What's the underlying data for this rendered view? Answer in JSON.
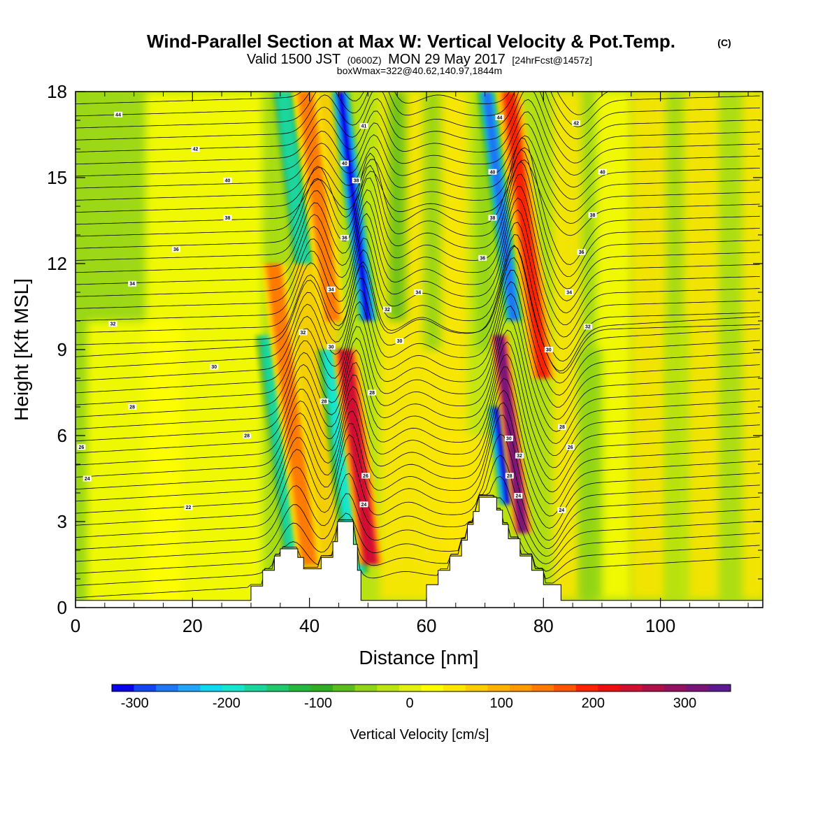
{
  "chart_data": {
    "type": "heatmap",
    "title": "Wind-Parallel Section at Max W: Vertical Velocity & Pot.Temp.",
    "title_mark": "(C)",
    "subtitle_parts": [
      "Valid 1500 JST",
      "(0600Z)",
      "MON 29 May 2017",
      "[24hrFcst@1457z]"
    ],
    "subtitle2": "boxWmax=322@40.62,140.97,1844m",
    "xlabel": "Distance [nm]",
    "ylabel": "Height [Kft MSL]",
    "xlim": [
      0,
      117.5
    ],
    "ylim": [
      0,
      18
    ],
    "x_ticks": [
      "0",
      "20",
      "40",
      "60",
      "80",
      "100"
    ],
    "y_ticks": [
      "0",
      "3",
      "6",
      "9",
      "12",
      "15",
      "18"
    ],
    "colorbar": {
      "label": "Vertical Velocity [cm/s]",
      "range": [
        -325,
        350
      ],
      "tick_labels": [
        "-300",
        "-200",
        "-100",
        "0",
        "100",
        "200",
        "300"
      ],
      "colors": [
        "#0a05e8",
        "#1446f0",
        "#1f77f5",
        "#22a6f7",
        "#10d8f3",
        "#16e6ce",
        "#1ad69d",
        "#1fc96c",
        "#24b93d",
        "#2fae21",
        "#5cbe1d",
        "#8fd417",
        "#bce411",
        "#e1f00c",
        "#fefe02",
        "#ffe600",
        "#ffcc00",
        "#ffb300",
        "#ff9900",
        "#ff7a00",
        "#ff5400",
        "#fb2400",
        "#ec0f10",
        "#d11030",
        "#b01048",
        "#941060",
        "#7a1478",
        "#5d1a90"
      ]
    },
    "terrain_kft": [
      [
        0,
        0.25
      ],
      [
        30,
        0.25
      ],
      [
        30,
        0.75
      ],
      [
        32,
        0.75
      ],
      [
        32,
        1.3
      ],
      [
        34,
        1.3
      ],
      [
        34,
        1.8
      ],
      [
        35,
        1.8
      ],
      [
        35,
        2.05
      ],
      [
        38,
        2.05
      ],
      [
        38,
        1.75
      ],
      [
        39,
        1.75
      ],
      [
        39,
        1.35
      ],
      [
        42,
        1.35
      ],
      [
        42,
        1.75
      ],
      [
        44,
        1.75
      ],
      [
        44,
        2.3
      ],
      [
        44.8,
        2.3
      ],
      [
        44.8,
        3.0
      ],
      [
        47.5,
        3.0
      ],
      [
        47.5,
        2.2
      ],
      [
        48.2,
        2.2
      ],
      [
        48.2,
        1.3
      ],
      [
        48.8,
        1.3
      ],
      [
        48.8,
        0.25
      ],
      [
        60,
        0.25
      ],
      [
        60,
        0.8
      ],
      [
        62,
        0.8
      ],
      [
        62,
        1.3
      ],
      [
        64,
        1.3
      ],
      [
        64,
        1.8
      ],
      [
        66,
        1.8
      ],
      [
        66,
        2.35
      ],
      [
        67,
        2.35
      ],
      [
        67,
        2.9
      ],
      [
        68,
        2.9
      ],
      [
        68,
        3.35
      ],
      [
        69,
        3.35
      ],
      [
        69,
        3.85
      ],
      [
        72,
        3.85
      ],
      [
        72,
        3.4
      ],
      [
        73,
        3.4
      ],
      [
        73,
        2.9
      ],
      [
        74,
        2.9
      ],
      [
        74,
        2.4
      ],
      [
        76,
        2.4
      ],
      [
        76,
        1.8
      ],
      [
        78,
        1.8
      ],
      [
        78,
        1.3
      ],
      [
        80,
        1.3
      ],
      [
        80,
        0.8
      ],
      [
        83,
        0.8
      ],
      [
        83,
        0.25
      ],
      [
        117.5,
        0.25
      ]
    ],
    "vertical_velocity_features": [
      {
        "x": 37.5,
        "top_kft": 9.5,
        "bottom_kft": 1.5,
        "w_cm_s": -180
      },
      {
        "x": 40,
        "top_kft": 12,
        "bottom_kft": 1.5,
        "w_cm_s": 150
      },
      {
        "x": 39,
        "top_kft": 18,
        "bottom_kft": 12,
        "w_cm_s": -180
      },
      {
        "x": 44,
        "top_kft": 18,
        "bottom_kft": 10,
        "w_cm_s": 140
      },
      {
        "x": 48,
        "top_kft": 9,
        "bottom_kft": 1.2,
        "w_cm_s": -200
      },
      {
        "x": 50,
        "top_kft": 18,
        "bottom_kft": 10,
        "w_cm_s": -310
      },
      {
        "x": 50.5,
        "top_kft": 9,
        "bottom_kft": 1.5,
        "w_cm_s": 250
      },
      {
        "x": 74,
        "top_kft": 7,
        "bottom_kft": 3.6,
        "w_cm_s": -320
      },
      {
        "x": 76.5,
        "top_kft": 9.5,
        "bottom_kft": 2.6,
        "w_cm_s": 322
      },
      {
        "x": 75,
        "top_kft": 18,
        "bottom_kft": 10,
        "w_cm_s": -260
      },
      {
        "x": 80,
        "top_kft": 18,
        "bottom_kft": 8,
        "w_cm_s": 200
      }
    ],
    "theta_contour_labels": [
      {
        "text": "44",
        "x": 7.3,
        "y": 17.2
      },
      {
        "text": "42",
        "x": 20.5,
        "y": 16.0
      },
      {
        "text": "40",
        "x": 26,
        "y": 14.9
      },
      {
        "text": "38",
        "x": 26,
        "y": 13.6
      },
      {
        "text": "36",
        "x": 17.2,
        "y": 12.5
      },
      {
        "text": "34",
        "x": 9.7,
        "y": 11.3
      },
      {
        "text": "32",
        "x": 6.4,
        "y": 9.9
      },
      {
        "text": "30",
        "x": 23.7,
        "y": 8.4
      },
      {
        "text": "28",
        "x": 9.7,
        "y": 7.0
      },
      {
        "text": "26",
        "x": 1,
        "y": 5.6
      },
      {
        "text": "24",
        "x": 2,
        "y": 4.5
      },
      {
        "text": "22",
        "x": 19.3,
        "y": 3.5
      },
      {
        "text": "28",
        "x": 29.3,
        "y": 6.0
      },
      {
        "text": "41",
        "x": 49.3,
        "y": 16.8
      },
      {
        "text": "40",
        "x": 46,
        "y": 15.5
      },
      {
        "text": "38",
        "x": 48,
        "y": 14.9
      },
      {
        "text": "36",
        "x": 46,
        "y": 12.9
      },
      {
        "text": "34",
        "x": 43.7,
        "y": 11.1
      },
      {
        "text": "32",
        "x": 38.9,
        "y": 9.6
      },
      {
        "text": "30",
        "x": 43.7,
        "y": 9.1
      },
      {
        "text": "28",
        "x": 42.5,
        "y": 7.2
      },
      {
        "text": "34",
        "x": 58.6,
        "y": 11.0
      },
      {
        "text": "32",
        "x": 53.3,
        "y": 10.4
      },
      {
        "text": "30",
        "x": 55.4,
        "y": 9.3
      },
      {
        "text": "28",
        "x": 50.7,
        "y": 7.5
      },
      {
        "text": "26",
        "x": 49.6,
        "y": 4.6
      },
      {
        "text": "24",
        "x": 49.3,
        "y": 3.6
      },
      {
        "text": "44",
        "x": 72.5,
        "y": 17.1
      },
      {
        "text": "42",
        "x": 85.6,
        "y": 16.9
      },
      {
        "text": "40",
        "x": 71.3,
        "y": 15.2
      },
      {
        "text": "40",
        "x": 90.1,
        "y": 15.2
      },
      {
        "text": "38",
        "x": 71.3,
        "y": 13.6
      },
      {
        "text": "38",
        "x": 88.4,
        "y": 13.7
      },
      {
        "text": "36",
        "x": 69.6,
        "y": 12.2
      },
      {
        "text": "36",
        "x": 86.5,
        "y": 12.4
      },
      {
        "text": "34",
        "x": 84.4,
        "y": 11.0
      },
      {
        "text": "32",
        "x": 87.6,
        "y": 9.8
      },
      {
        "text": "30",
        "x": 80.9,
        "y": 9.0
      },
      {
        "text": "28",
        "x": 83.2,
        "y": 6.3
      },
      {
        "text": "26",
        "x": 84.6,
        "y": 5.6
      },
      {
        "text": "30",
        "x": 74.1,
        "y": 5.9
      },
      {
        "text": "32",
        "x": 75.9,
        "y": 5.3
      },
      {
        "text": "28",
        "x": 74.2,
        "y": 4.6
      },
      {
        "text": "24",
        "x": 75.7,
        "y": 3.9
      },
      {
        "text": "24",
        "x": 83.1,
        "y": 3.4
      }
    ]
  }
}
